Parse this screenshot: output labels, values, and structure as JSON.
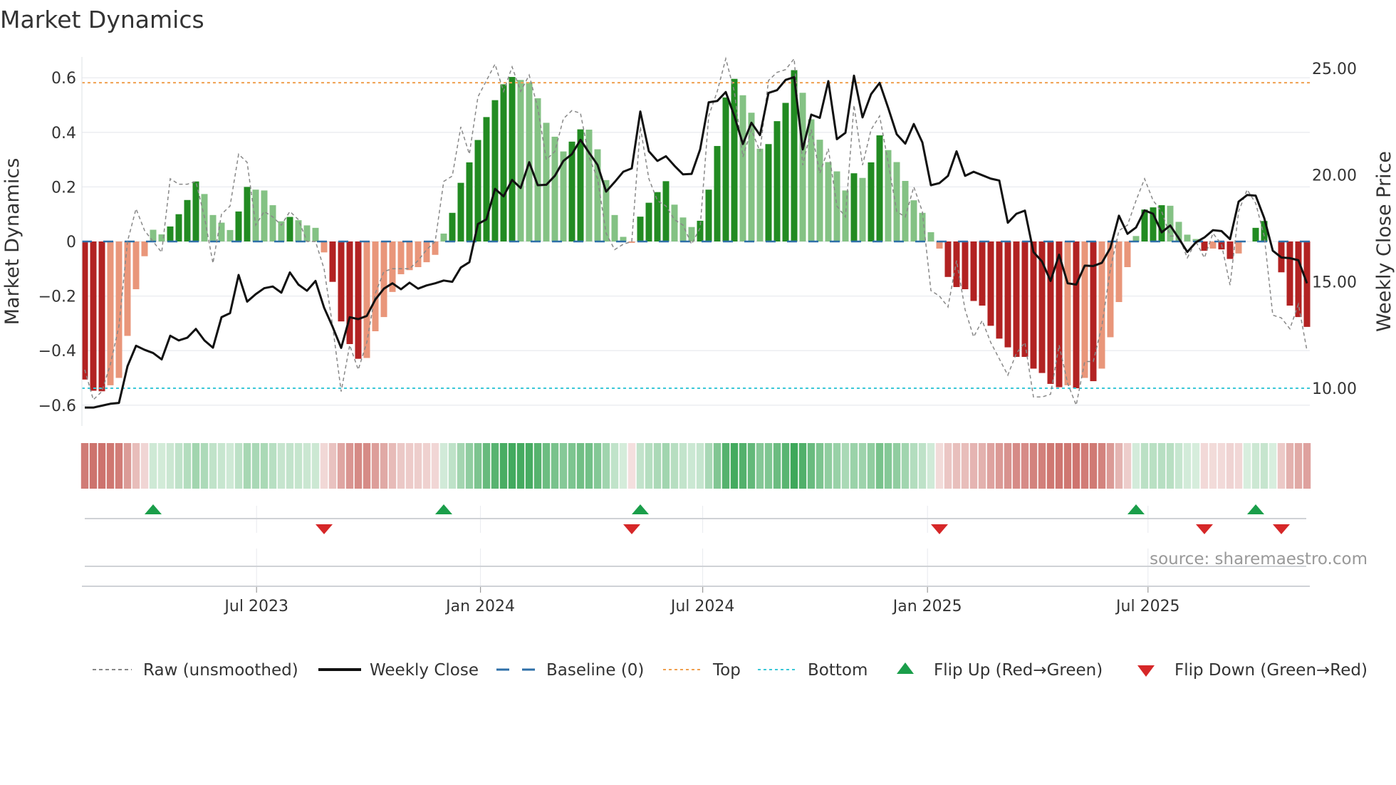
{
  "title": "Market Dynamics",
  "source": "source: sharemaestro.com",
  "colors": {
    "bar_up_strong": "#228B22",
    "bar_up_weak": "#84C284",
    "bar_down_strong": "#B22222",
    "bar_down_weak": "#E9967A",
    "heat_green": "#3EA85A",
    "heat_red": "#C8645E",
    "raw": "#888888",
    "close": "#111111",
    "baseline": "#2E6FA8",
    "top": "#F0A050",
    "bottom": "#3CC8D8",
    "flip_up": "#1A9E4A",
    "flip_down": "#D62728"
  },
  "chart_data": {
    "type": "bar",
    "title": "Market Dynamics",
    "ylabel": "Market Dynamics",
    "y2label": "Weekly Close Price",
    "ylim": [
      -0.675,
      0.675
    ],
    "y2lim": [
      8.25,
      25.5
    ],
    "yticks": [
      {
        "v": 0.6,
        "label": "0.6"
      },
      {
        "v": 0.4,
        "label": "0.4"
      },
      {
        "v": 0.2,
        "label": "0.2"
      },
      {
        "v": 0,
        "label": "0"
      },
      {
        "v": -0.2,
        "label": "−0.2"
      },
      {
        "v": -0.4,
        "label": "−0.4"
      },
      {
        "v": -0.6,
        "label": "−0.6"
      }
    ],
    "y2ticks": [
      {
        "v": 25,
        "label": "25.00"
      },
      {
        "v": 20,
        "label": "20.00"
      },
      {
        "v": 15,
        "label": "15.00"
      },
      {
        "v": 10,
        "label": "10.00"
      }
    ],
    "xticks": [
      {
        "week": 20.1,
        "label": "Jul 2023"
      },
      {
        "week": 46.3,
        "label": "Jan 2024"
      },
      {
        "week": 72.3,
        "label": "Jul 2024"
      },
      {
        "week": 98.6,
        "label": "Jan 2025"
      },
      {
        "week": 124.4,
        "label": "Jul 2025"
      }
    ],
    "top_level": 0.582,
    "bottom_level": -0.538,
    "baseline": 0,
    "values": [
      -0.506,
      -0.547,
      -0.549,
      -0.527,
      -0.5,
      -0.346,
      -0.175,
      -0.054,
      0.043,
      0.026,
      0.055,
      0.1,
      0.152,
      0.22,
      0.174,
      0.097,
      0.069,
      0.042,
      0.11,
      0.2,
      0.19,
      0.187,
      0.133,
      0.074,
      0.09,
      0.078,
      0.059,
      0.05,
      -0.04,
      -0.148,
      -0.293,
      -0.376,
      -0.43,
      -0.427,
      -0.329,
      -0.277,
      -0.185,
      -0.12,
      -0.105,
      -0.094,
      -0.076,
      -0.049,
      0.029,
      0.105,
      0.215,
      0.29,
      0.372,
      0.456,
      0.518,
      0.576,
      0.603,
      0.592,
      0.584,
      0.525,
      0.435,
      0.384,
      0.33,
      0.366,
      0.411,
      0.41,
      0.338,
      0.225,
      0.097,
      0.017,
      -0.005,
      0.091,
      0.142,
      0.181,
      0.221,
      0.135,
      0.088,
      0.053,
      0.076,
      0.19,
      0.35,
      0.528,
      0.596,
      0.536,
      0.472,
      0.34,
      0.357,
      0.441,
      0.508,
      0.628,
      0.545,
      0.448,
      0.373,
      0.291,
      0.257,
      0.187,
      0.25,
      0.233,
      0.29,
      0.389,
      0.335,
      0.291,
      0.222,
      0.151,
      0.105,
      0.034,
      -0.026,
      -0.13,
      -0.167,
      -0.175,
      -0.218,
      -0.235,
      -0.309,
      -0.356,
      -0.388,
      -0.423,
      -0.423,
      -0.466,
      -0.482,
      -0.522,
      -0.534,
      -0.527,
      -0.538,
      -0.5,
      -0.512,
      -0.466,
      -0.351,
      -0.222,
      -0.094,
      0.02,
      0.117,
      0.125,
      0.133,
      0.131,
      0.072,
      0.025,
      0.009,
      -0.034,
      -0.026,
      -0.029,
      -0.064,
      -0.044,
      0,
      0.05,
      0.075,
      0,
      -0.113,
      -0.235,
      -0.277,
      -0.313
    ],
    "weekly_close": [
      9.09,
      9.09,
      9.18,
      9.27,
      9.31,
      11.03,
      11.99,
      11.8,
      11.65,
      11.35,
      12.46,
      12.24,
      12.37,
      12.78,
      12.24,
      11.9,
      13.33,
      13.52,
      15.31,
      14.06,
      14.41,
      14.69,
      14.77,
      14.48,
      15.43,
      14.86,
      14.57,
      15.03,
      13.78,
      12.88,
      11.89,
      13.33,
      13.24,
      13.39,
      14.16,
      14.67,
      14.92,
      14.64,
      14.95,
      14.67,
      14.82,
      14.92,
      15.05,
      14.99,
      15.66,
      15.91,
      17.7,
      17.92,
      19.35,
      19.0,
      19.77,
      19.39,
      20.6,
      19.52,
      19.54,
      19.96,
      20.66,
      20.98,
      21.65,
      21.05,
      20.47,
      19.22,
      19.67,
      20.15,
      20.31,
      22.98,
      21.11,
      20.66,
      20.88,
      20.43,
      20.03,
      20.05,
      21.2,
      23.41,
      23.47,
      23.89,
      22.77,
      21.45,
      22.45,
      21.87,
      23.85,
      23.98,
      24.46,
      24.59,
      21.2,
      22.83,
      22.68,
      24.4,
      21.68,
      21.98,
      24.66,
      22.7,
      23.79,
      24.32,
      23.15,
      21.91,
      21.47,
      22.39,
      21.53,
      19.52,
      19.62,
      19.96,
      21.11,
      19.96,
      20.15,
      19.99,
      19.83,
      19.74,
      17.76,
      18.18,
      18.33,
      16.39,
      15.94,
      15.03,
      16.26,
      14.92,
      14.86,
      15.75,
      15.73,
      15.88,
      16.58,
      18.09,
      17.24,
      17.54,
      18.34,
      18.18,
      17.31,
      17.63,
      17.03,
      16.39,
      16.84,
      17.07,
      17.41,
      17.37,
      16.99,
      18.75,
      19.06,
      19.03,
      17.98,
      16.45,
      16.13,
      16.1,
      16.0,
      14.92
    ],
    "raw": [
      -0.47,
      -0.58,
      -0.55,
      -0.45,
      -0.31,
      0.0,
      0.12,
      0.04,
      0.0,
      -0.04,
      0.23,
      0.21,
      0.21,
      0.22,
      0.09,
      -0.08,
      0.1,
      0.13,
      0.32,
      0.29,
      0.06,
      0.11,
      0.09,
      0.06,
      0.11,
      0.08,
      0.0,
      0.0,
      -0.1,
      -0.31,
      -0.55,
      -0.38,
      -0.47,
      -0.37,
      -0.19,
      -0.11,
      -0.1,
      -0.1,
      -0.1,
      -0.07,
      -0.03,
      0.0,
      0.22,
      0.24,
      0.42,
      0.32,
      0.53,
      0.59,
      0.65,
      0.55,
      0.64,
      0.55,
      0.61,
      0.49,
      0.3,
      0.33,
      0.45,
      0.48,
      0.47,
      0.31,
      0.23,
      0.03,
      -0.03,
      -0.01,
      0.0,
      0.42,
      0.23,
      0.15,
      0.13,
      0.08,
      0.06,
      -0.01,
      0.05,
      0.46,
      0.55,
      0.67,
      0.55,
      0.31,
      0.41,
      0.33,
      0.59,
      0.62,
      0.63,
      0.67,
      0.28,
      0.41,
      0.25,
      0.34,
      0.13,
      0.09,
      0.5,
      0.28,
      0.41,
      0.46,
      0.29,
      0.11,
      0.09,
      0.2,
      0.11,
      -0.18,
      -0.2,
      -0.24,
      -0.07,
      -0.25,
      -0.35,
      -0.29,
      -0.37,
      -0.43,
      -0.49,
      -0.41,
      -0.37,
      -0.57,
      -0.57,
      -0.56,
      -0.38,
      -0.52,
      -0.6,
      -0.44,
      -0.44,
      -0.31,
      -0.1,
      0.04,
      0.06,
      0.15,
      0.23,
      0.15,
      0.11,
      0.02,
      0.02,
      -0.06,
      0.0,
      -0.06,
      0.03,
      -0.01,
      -0.16,
      0.11,
      0.19,
      0.14,
      0.02,
      -0.27,
      -0.28,
      -0.32,
      -0.23,
      -0.4
    ],
    "flip_up_weeks": [
      8,
      42,
      65,
      123,
      137
    ],
    "flip_down_weeks": [
      28,
      64,
      100,
      131,
      140
    ],
    "legend": {
      "position": "bottom",
      "items": [
        {
          "key": "raw",
          "label": "Raw (unsmoothed)"
        },
        {
          "key": "close",
          "label": "Weekly Close"
        },
        {
          "key": "baseline",
          "label": "Baseline (0)"
        },
        {
          "key": "top",
          "label": "Top"
        },
        {
          "key": "bottom",
          "label": "Bottom"
        },
        {
          "key": "flip_up",
          "label": "Flip Up (Red→Green)"
        },
        {
          "key": "flip_down",
          "label": "Flip Down (Green→Red)"
        }
      ]
    }
  }
}
